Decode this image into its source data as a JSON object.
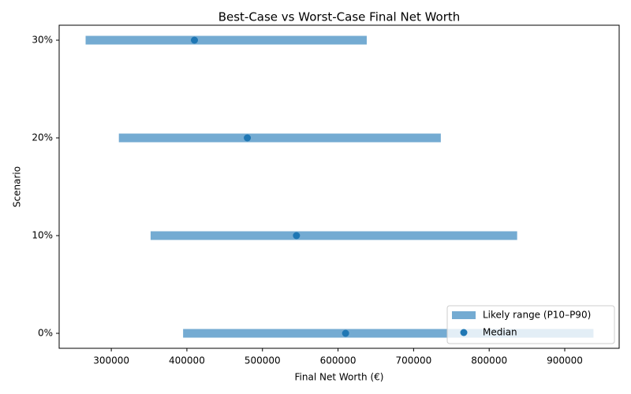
{
  "chart_data": {
    "type": "range",
    "title": "Best-Case vs Worst-Case Final Net Worth",
    "x_label": "Final Net Worth (€)",
    "y_label": "Scenario",
    "categories": [
      "0%",
      "10%",
      "20%",
      "30%"
    ],
    "series": [
      {
        "name": "Likely range (P10–P90)",
        "color": "#74abd2",
        "low": [
          395000,
          352000,
          310000,
          266000
        ],
        "high": [
          938000,
          837000,
          736000,
          638000
        ]
      },
      {
        "name": "Median",
        "color": "#1f77b4",
        "values": [
          610000,
          545000,
          480000,
          410000
        ]
      }
    ],
    "xlim": [
      231000,
      972000
    ],
    "xticks": [
      300000,
      400000,
      500000,
      600000,
      700000,
      800000,
      900000
    ],
    "legend": "lower right"
  }
}
